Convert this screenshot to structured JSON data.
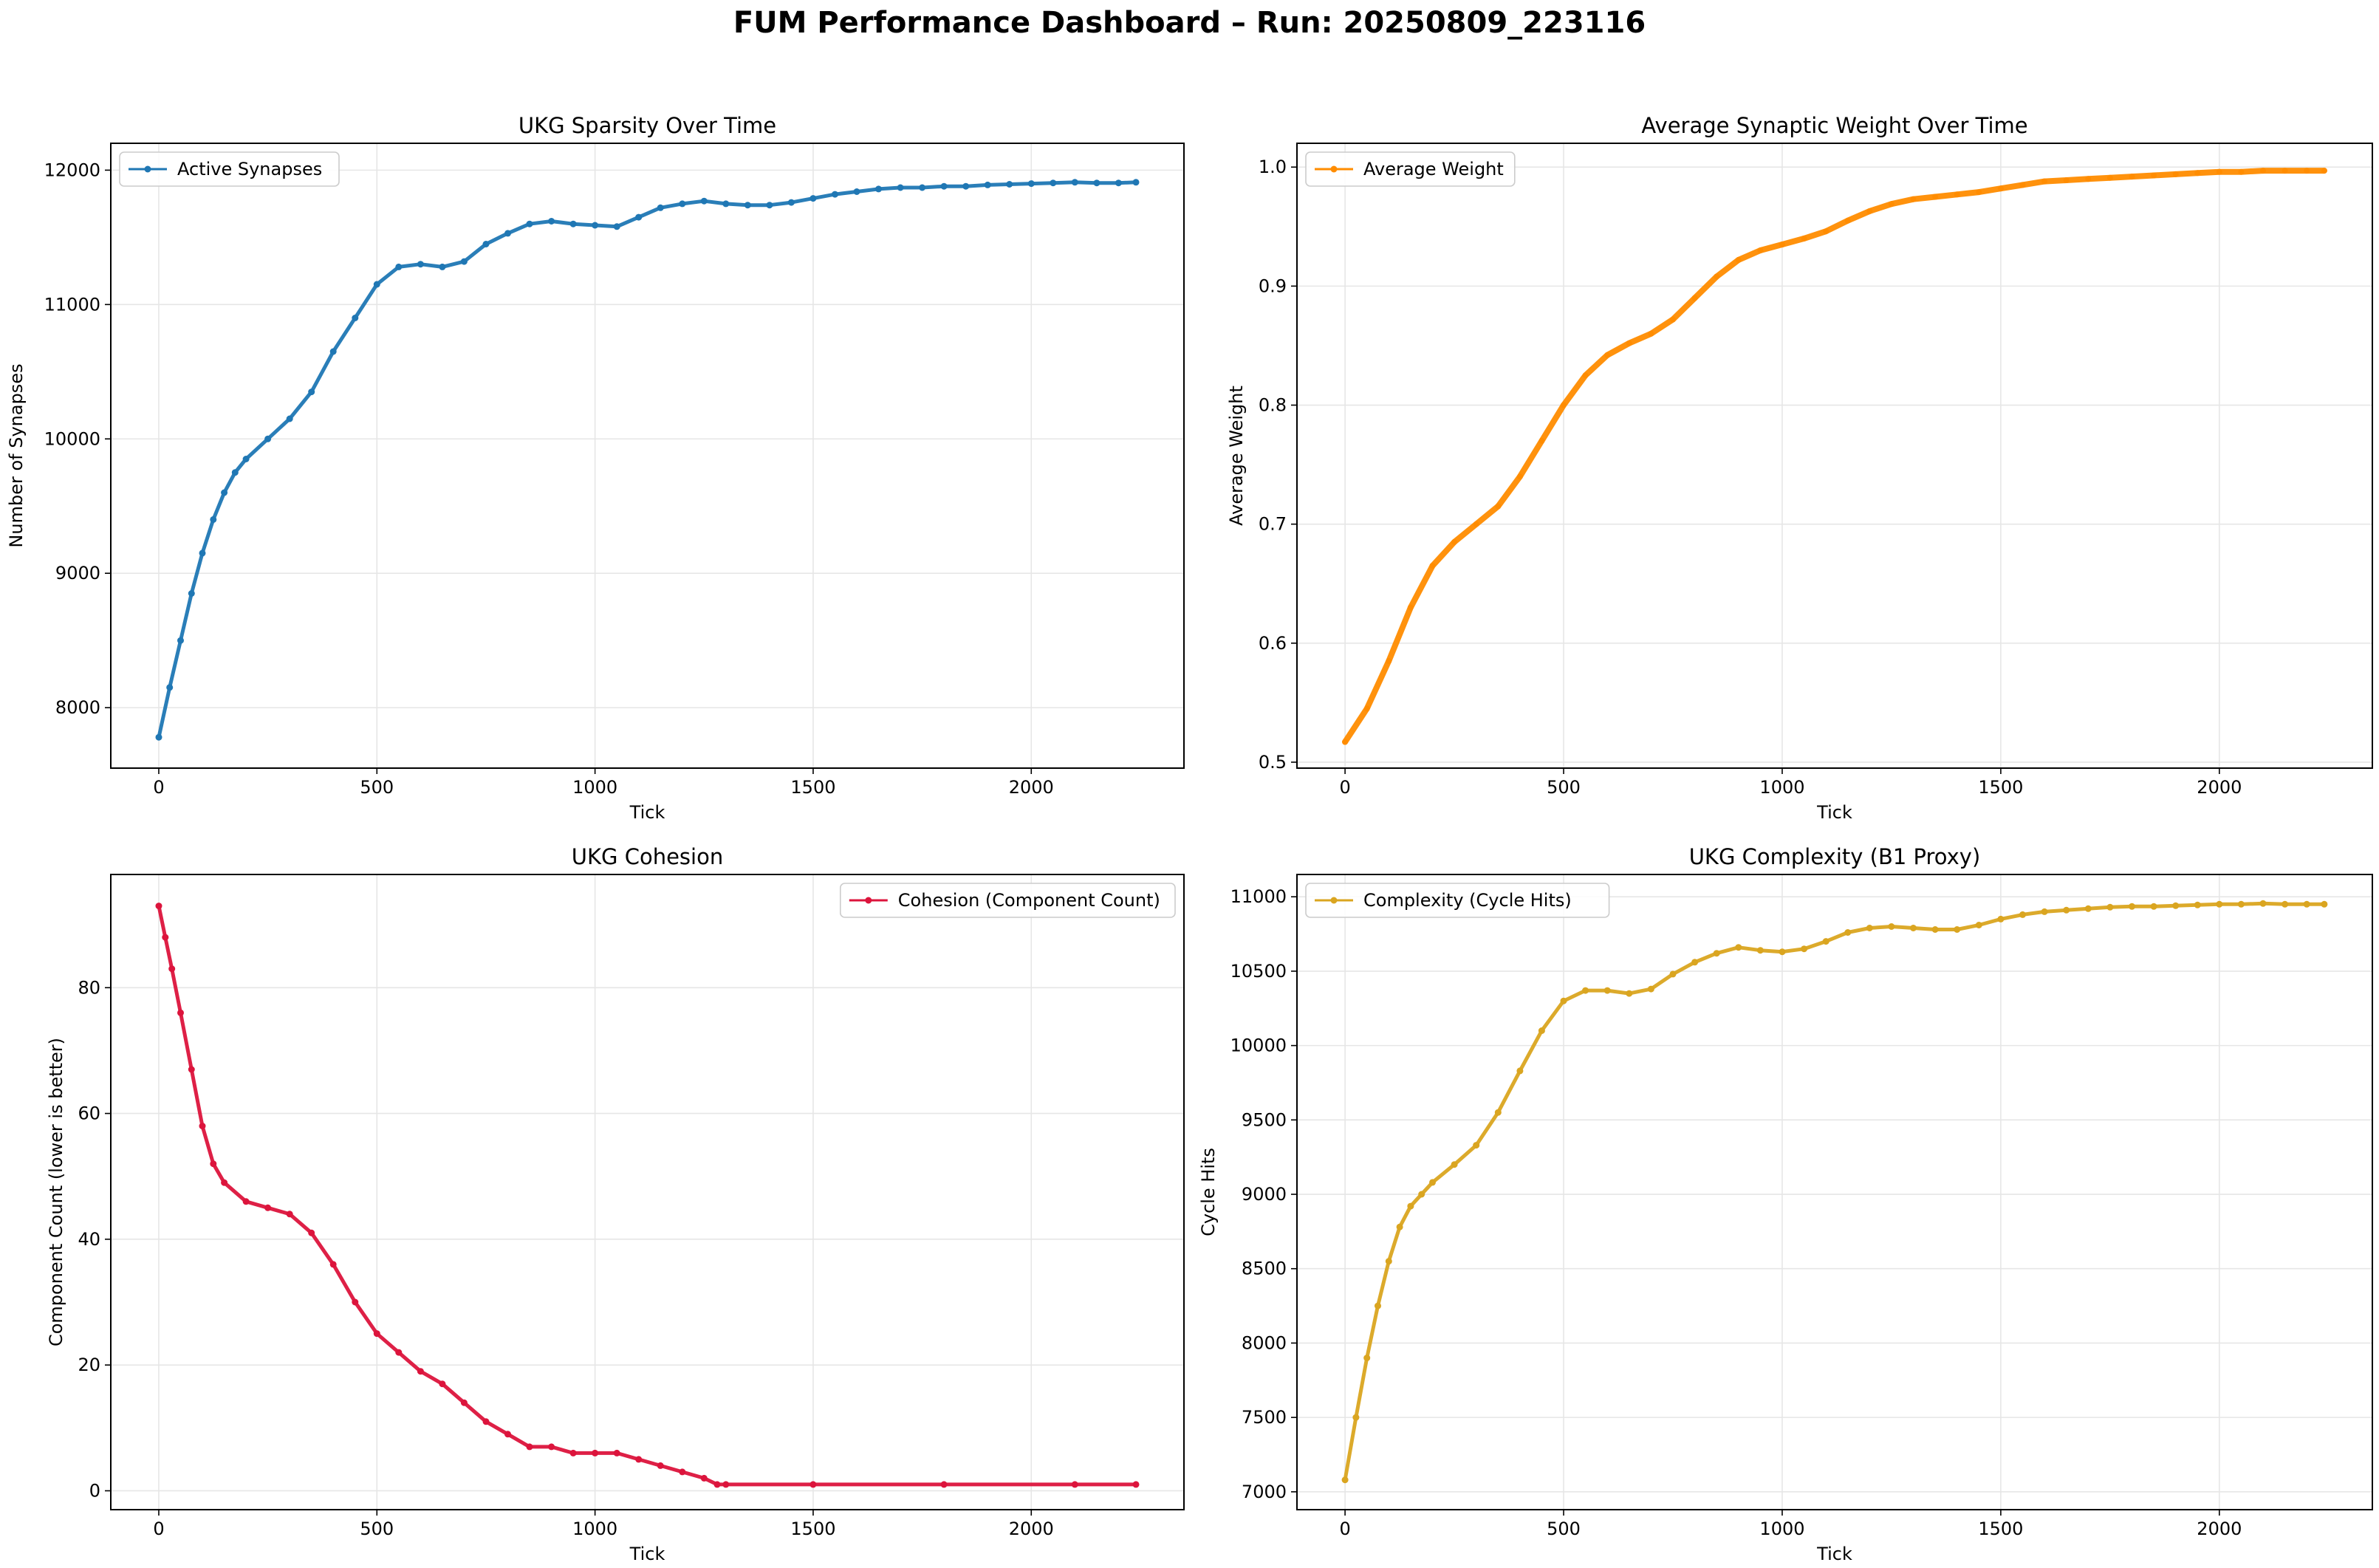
{
  "suptitle": "FUM Performance Dashboard – Run: 20250809_223116",
  "chart_data": [
    {
      "type": "line",
      "title": "UKG Sparsity Over Time",
      "xlabel": "Tick",
      "ylabel": "Number of Synapses",
      "xlim": [
        -110,
        2350
      ],
      "ylim": [
        7550,
        12200
      ],
      "xticks": [
        0,
        500,
        1000,
        1500,
        2000
      ],
      "yticks": [
        8000,
        9000,
        10000,
        11000,
        12000
      ],
      "grid": true,
      "legend_position": "upper left",
      "series": [
        {
          "name": "Active Synapses",
          "color": "#1f77b4",
          "x": [
            0,
            25,
            50,
            75,
            100,
            125,
            150,
            175,
            200,
            250,
            300,
            350,
            400,
            450,
            500,
            550,
            600,
            650,
            700,
            750,
            800,
            850,
            900,
            950,
            1000,
            1050,
            1100,
            1150,
            1200,
            1250,
            1300,
            1350,
            1400,
            1450,
            1500,
            1550,
            1600,
            1650,
            1700,
            1750,
            1800,
            1850,
            1900,
            1950,
            2000,
            2050,
            2100,
            2150,
            2200,
            2240
          ],
          "y": [
            7780,
            8150,
            8500,
            8850,
            9150,
            9400,
            9600,
            9750,
            9850,
            10000,
            10150,
            10350,
            10650,
            10900,
            11150,
            11280,
            11300,
            11280,
            11320,
            11450,
            11530,
            11600,
            11620,
            11600,
            11590,
            11580,
            11650,
            11720,
            11750,
            11770,
            11750,
            11740,
            11740,
            11760,
            11790,
            11820,
            11840,
            11860,
            11870,
            11870,
            11880,
            11880,
            11890,
            11895,
            11900,
            11905,
            11910,
            11905,
            11905,
            11910
          ]
        }
      ]
    },
    {
      "type": "line",
      "title": "Average Synaptic Weight Over Time",
      "xlabel": "Tick",
      "ylabel": "Average Weight",
      "xlim": [
        -110,
        2350
      ],
      "ylim": [
        0.495,
        1.02
      ],
      "xticks": [
        0,
        500,
        1000,
        1500,
        2000
      ],
      "yticks": [
        0.5,
        0.6,
        0.7,
        0.8,
        0.9,
        1.0
      ],
      "grid": true,
      "legend_position": "upper left",
      "series": [
        {
          "name": "Average Weight",
          "color": "#ff8c00",
          "x": [
            0,
            50,
            100,
            150,
            200,
            250,
            300,
            350,
            400,
            450,
            500,
            550,
            600,
            650,
            700,
            750,
            800,
            850,
            900,
            950,
            1000,
            1050,
            1100,
            1150,
            1200,
            1250,
            1300,
            1350,
            1400,
            1450,
            1500,
            1550,
            1600,
            1650,
            1700,
            1750,
            1800,
            1850,
            1900,
            1950,
            2000,
            2050,
            2100,
            2150,
            2200,
            2240
          ],
          "y": [
            0.517,
            0.545,
            0.585,
            0.63,
            0.665,
            0.685,
            0.7,
            0.715,
            0.74,
            0.77,
            0.8,
            0.825,
            0.842,
            0.852,
            0.86,
            0.872,
            0.89,
            0.908,
            0.922,
            0.93,
            0.935,
            0.94,
            0.946,
            0.955,
            0.963,
            0.969,
            0.973,
            0.975,
            0.977,
            0.979,
            0.982,
            0.985,
            0.988,
            0.989,
            0.99,
            0.991,
            0.992,
            0.993,
            0.994,
            0.995,
            0.996,
            0.996,
            0.997,
            0.997,
            0.997,
            0.997
          ]
        }
      ]
    },
    {
      "type": "line",
      "title": "UKG Cohesion",
      "xlabel": "Tick",
      "ylabel": "Component Count (lower is better)",
      "xlim": [
        -110,
        2350
      ],
      "ylim": [
        -3,
        98
      ],
      "xticks": [
        0,
        500,
        1000,
        1500,
        2000
      ],
      "yticks": [
        0,
        20,
        40,
        60,
        80
      ],
      "grid": true,
      "legend_position": "upper right",
      "series": [
        {
          "name": "Cohesion (Component Count)",
          "color": "#dc143c",
          "x": [
            0,
            15,
            30,
            50,
            75,
            100,
            125,
            150,
            200,
            250,
            300,
            350,
            400,
            450,
            500,
            550,
            600,
            650,
            700,
            750,
            800,
            850,
            900,
            950,
            1000,
            1050,
            1100,
            1150,
            1200,
            1250,
            1280,
            1300,
            1500,
            1800,
            2100,
            2240
          ],
          "y": [
            93,
            88,
            83,
            76,
            67,
            58,
            52,
            49,
            46,
            45,
            44,
            41,
            36,
            30,
            25,
            22,
            19,
            17,
            14,
            11,
            9,
            7,
            7,
            6,
            6,
            6,
            5,
            4,
            3,
            2,
            1,
            1,
            1,
            1,
            1,
            1
          ]
        }
      ]
    },
    {
      "type": "line",
      "title": "UKG Complexity (B1 Proxy)",
      "xlabel": "Tick",
      "ylabel": "Cycle Hits",
      "xlim": [
        -110,
        2350
      ],
      "ylim": [
        6880,
        11150
      ],
      "xticks": [
        0,
        500,
        1000,
        1500,
        2000
      ],
      "yticks": [
        7000,
        7500,
        8000,
        8500,
        9000,
        9500,
        10000,
        10500,
        11000
      ],
      "grid": true,
      "legend_position": "upper left",
      "series": [
        {
          "name": "Complexity (Cycle Hits)",
          "color": "#daa520",
          "x": [
            0,
            25,
            50,
            75,
            100,
            125,
            150,
            175,
            200,
            250,
            300,
            350,
            400,
            450,
            500,
            550,
            600,
            650,
            700,
            750,
            800,
            850,
            900,
            950,
            1000,
            1050,
            1100,
            1150,
            1200,
            1250,
            1300,
            1350,
            1400,
            1450,
            1500,
            1550,
            1600,
            1650,
            1700,
            1750,
            1800,
            1850,
            1900,
            1950,
            2000,
            2050,
            2100,
            2150,
            2200,
            2240
          ],
          "y": [
            7080,
            7500,
            7900,
            8250,
            8550,
            8780,
            8920,
            9000,
            9080,
            9200,
            9330,
            9550,
            9830,
            10100,
            10300,
            10370,
            10370,
            10350,
            10380,
            10480,
            10560,
            10620,
            10660,
            10640,
            10630,
            10650,
            10700,
            10760,
            10790,
            10800,
            10790,
            10780,
            10780,
            10810,
            10850,
            10880,
            10900,
            10910,
            10920,
            10930,
            10935,
            10935,
            10940,
            10945,
            10950,
            10950,
            10955,
            10950,
            10950,
            10950
          ]
        }
      ]
    }
  ]
}
